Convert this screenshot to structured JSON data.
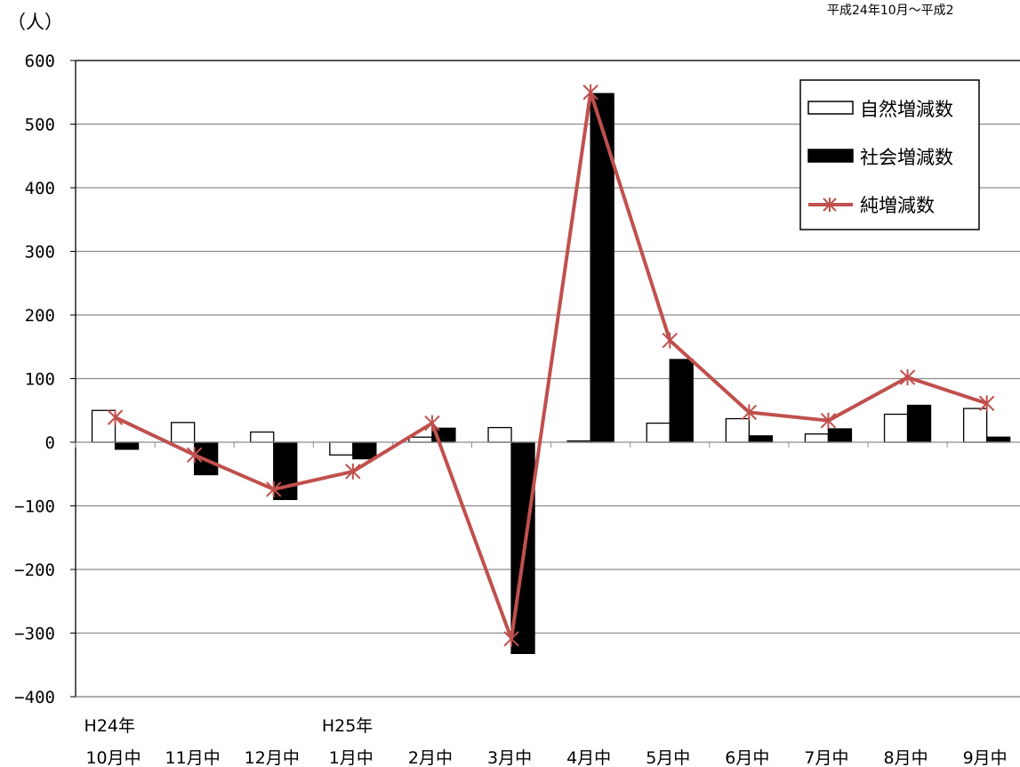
{
  "chart_data": {
    "type": "bar",
    "unit_label": "（人）",
    "period_note": "平成24年10月～平成2",
    "categories": [
      "10月中",
      "11月中",
      "12月中",
      "1月中",
      "2月中",
      "3月中",
      "4月中",
      "5月中",
      "6月中",
      "7月中",
      "8月中",
      "9月中"
    ],
    "category_year_labels": [
      "H24年",
      "",
      "",
      "H25年",
      "",
      "",
      "",
      "",
      "",
      "",
      "",
      ""
    ],
    "ylim": [
      -400,
      600
    ],
    "yticks": [
      600,
      500,
      400,
      300,
      200,
      100,
      0,
      -100,
      -200,
      -300,
      -400
    ],
    "grid": true,
    "legend_position": "top-right",
    "series": [
      {
        "name": "自然増減数",
        "type": "bar",
        "color": "#ffffff",
        "stroke": "#000000",
        "values": [
          50,
          31,
          16,
          -20,
          8,
          23,
          2,
          30,
          37,
          13,
          44,
          53
        ]
      },
      {
        "name": "社会増減数",
        "type": "bar",
        "color": "#000000",
        "stroke": "#000000",
        "values": [
          -11,
          -51,
          -90,
          -26,
          22,
          -332,
          548,
          130,
          10,
          21,
          58,
          8
        ]
      },
      {
        "name": "純増減数",
        "type": "line",
        "color": "#c0504d",
        "marker": "asterisk",
        "values": [
          39,
          -20,
          -74,
          -46,
          30,
          -309,
          550,
          160,
          47,
          34,
          102,
          61
        ]
      }
    ]
  }
}
